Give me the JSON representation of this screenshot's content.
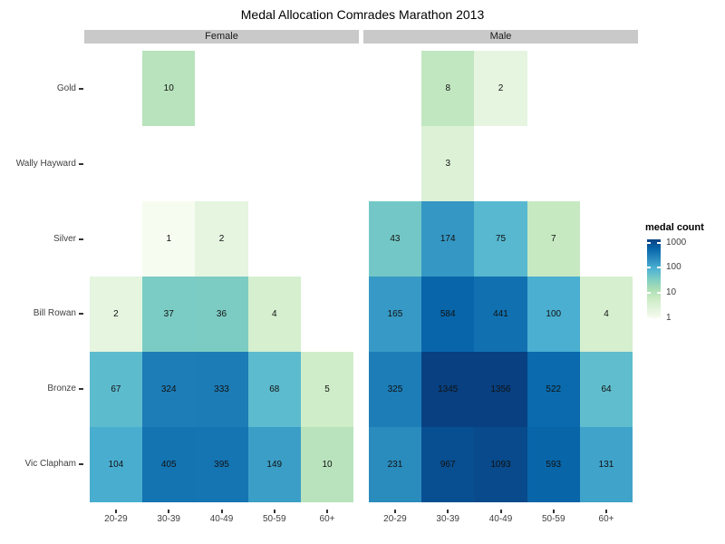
{
  "title": "Medal Allocation Comrades Marathon 2013",
  "colors": {
    "strip_fill": "#c9c9c9",
    "background": "#ffffff",
    "axis_text": "#404040",
    "cell_text": "#111111"
  },
  "legend": {
    "title": "medal count",
    "ticks": [
      1000,
      100,
      10,
      1
    ]
  },
  "chart_data": {
    "type": "heatmap",
    "title": "Medal Allocation Comrades Marathon 2013",
    "rows": [
      "Gold",
      "Wally Hayward",
      "Silver",
      "Bill Rowan",
      "Bronze",
      "Vic Clapham"
    ],
    "columns": [
      "20-29",
      "30-39",
      "40-49",
      "50-59",
      "60+"
    ],
    "facets": [
      {
        "name": "Female",
        "values": [
          [
            null,
            10,
            null,
            null,
            null
          ],
          [
            null,
            null,
            null,
            null,
            null
          ],
          [
            null,
            1,
            2,
            null,
            null
          ],
          [
            2,
            37,
            36,
            4,
            null
          ],
          [
            67,
            324,
            333,
            68,
            5
          ],
          [
            104,
            405,
            395,
            149,
            10
          ]
        ]
      },
      {
        "name": "Male",
        "values": [
          [
            null,
            8,
            2,
            null,
            null
          ],
          [
            null,
            3,
            null,
            null,
            null
          ],
          [
            43,
            174,
            75,
            7,
            null
          ],
          [
            165,
            584,
            441,
            100,
            4
          ],
          [
            325,
            1345,
            1356,
            522,
            64
          ],
          [
            231,
            967,
            1093,
            593,
            131
          ]
        ]
      }
    ],
    "color_scale": {
      "type": "log",
      "domain": [
        1,
        1356
      ],
      "palette": [
        "#f7fcf0",
        "#e0f3db",
        "#ccebc5",
        "#a8ddb5",
        "#7bccc4",
        "#4eb3d3",
        "#2b8cbe",
        "#0868ac",
        "#084081"
      ]
    },
    "legend": {
      "title": "medal count",
      "ticks": [
        1000,
        100,
        10,
        1
      ],
      "position": "right"
    },
    "grid": false
  }
}
